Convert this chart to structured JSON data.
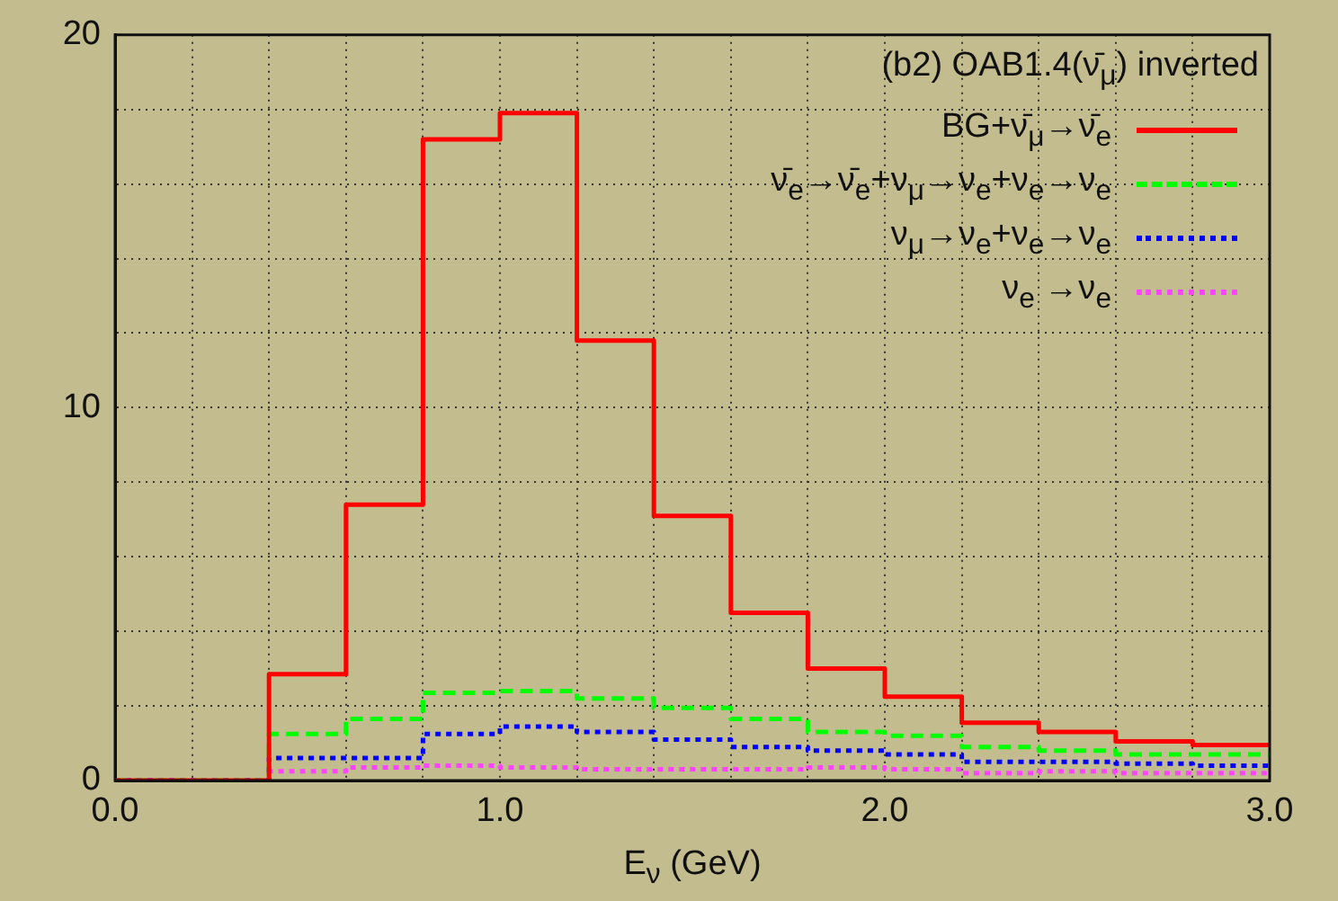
{
  "chart_data": {
    "type": "histogram",
    "legend_title": "(b2) OAB1.4(ν̄$_{μ}$) inverted",
    "xlabel": "E$_{ν}$ (GeV)",
    "bins": [
      0,
      0.2,
      0.4,
      0.6,
      0.8,
      1.0,
      1.2,
      1.4,
      1.6,
      1.8,
      2.0,
      2.2,
      2.4,
      2.6,
      2.8,
      3.0
    ],
    "series": [
      {
        "name": "BG+ν̄$_{μ}$→ν̄$_{e}$",
        "color": "#ff0000",
        "line_style": "solid",
        "values": [
          0,
          0,
          2.85,
          7.4,
          17.2,
          17.9,
          11.8,
          7.1,
          4.5,
          3.0,
          2.25,
          1.55,
          1.3,
          1.05,
          0.95
        ]
      },
      {
        "name": "ν̄$_{e}$→ν̄$_{e}$+ν$_{μ}$→ν$_{e}$+ν$_{e}$→ν$_{e}$",
        "color": "#00ff00",
        "line_style": "dashed",
        "values": [
          0,
          0,
          1.25,
          1.65,
          2.35,
          2.4,
          2.2,
          1.95,
          1.65,
          1.3,
          1.2,
          0.9,
          0.8,
          0.7,
          0.7
        ]
      },
      {
        "name": "ν$_{μ}$→ν$_{e}$+ν$_{e}$→ν$_{e}$",
        "color": "#0000ff",
        "line_style": "dotted",
        "values": [
          0,
          0,
          0.6,
          0.6,
          1.25,
          1.45,
          1.3,
          1.1,
          0.9,
          0.8,
          0.7,
          0.5,
          0.5,
          0.45,
          0.4
        ]
      },
      {
        "name": "ν$_{e}$ →ν$_{e}$",
        "color": "#ff44ff",
        "line_style": "dotted",
        "values": [
          0,
          0,
          0.25,
          0.35,
          0.4,
          0.35,
          0.3,
          0.3,
          0.3,
          0.35,
          0.3,
          0.2,
          0.25,
          0.2,
          0.2
        ]
      }
    ],
    "xlim": [
      0,
      3.0
    ],
    "xticks": [
      {
        "value": 0,
        "label": "0.0"
      },
      {
        "value": 0.2,
        "label": null
      },
      {
        "value": 0.4,
        "label": null
      },
      {
        "value": 0.6,
        "label": null
      },
      {
        "value": 0.8,
        "label": null
      },
      {
        "value": 1.0,
        "label": "1.0"
      },
      {
        "value": 1.2,
        "label": null
      },
      {
        "value": 1.4,
        "label": null
      },
      {
        "value": 1.6,
        "label": null
      },
      {
        "value": 1.8,
        "label": null
      },
      {
        "value": 2.0,
        "label": "2.0"
      },
      {
        "value": 2.2,
        "label": null
      },
      {
        "value": 2.4,
        "label": null
      },
      {
        "value": 2.6,
        "label": null
      },
      {
        "value": 2.8,
        "label": null
      },
      {
        "value": 3.0,
        "label": "3.0"
      }
    ],
    "ylim": [
      0,
      20
    ],
    "yticks": [
      0,
      {
        "value": 2,
        "label": null
      },
      {
        "value": 4,
        "label": null
      },
      {
        "value": 6,
        "label": null
      },
      {
        "value": 8,
        "label": null
      },
      10,
      {
        "value": 12,
        "label": null
      },
      {
        "value": 14,
        "label": null
      },
      {
        "value": 16,
        "label": null
      },
      {
        "value": 18,
        "label": null
      },
      20
    ],
    "grid": true,
    "legend": "top right"
  }
}
